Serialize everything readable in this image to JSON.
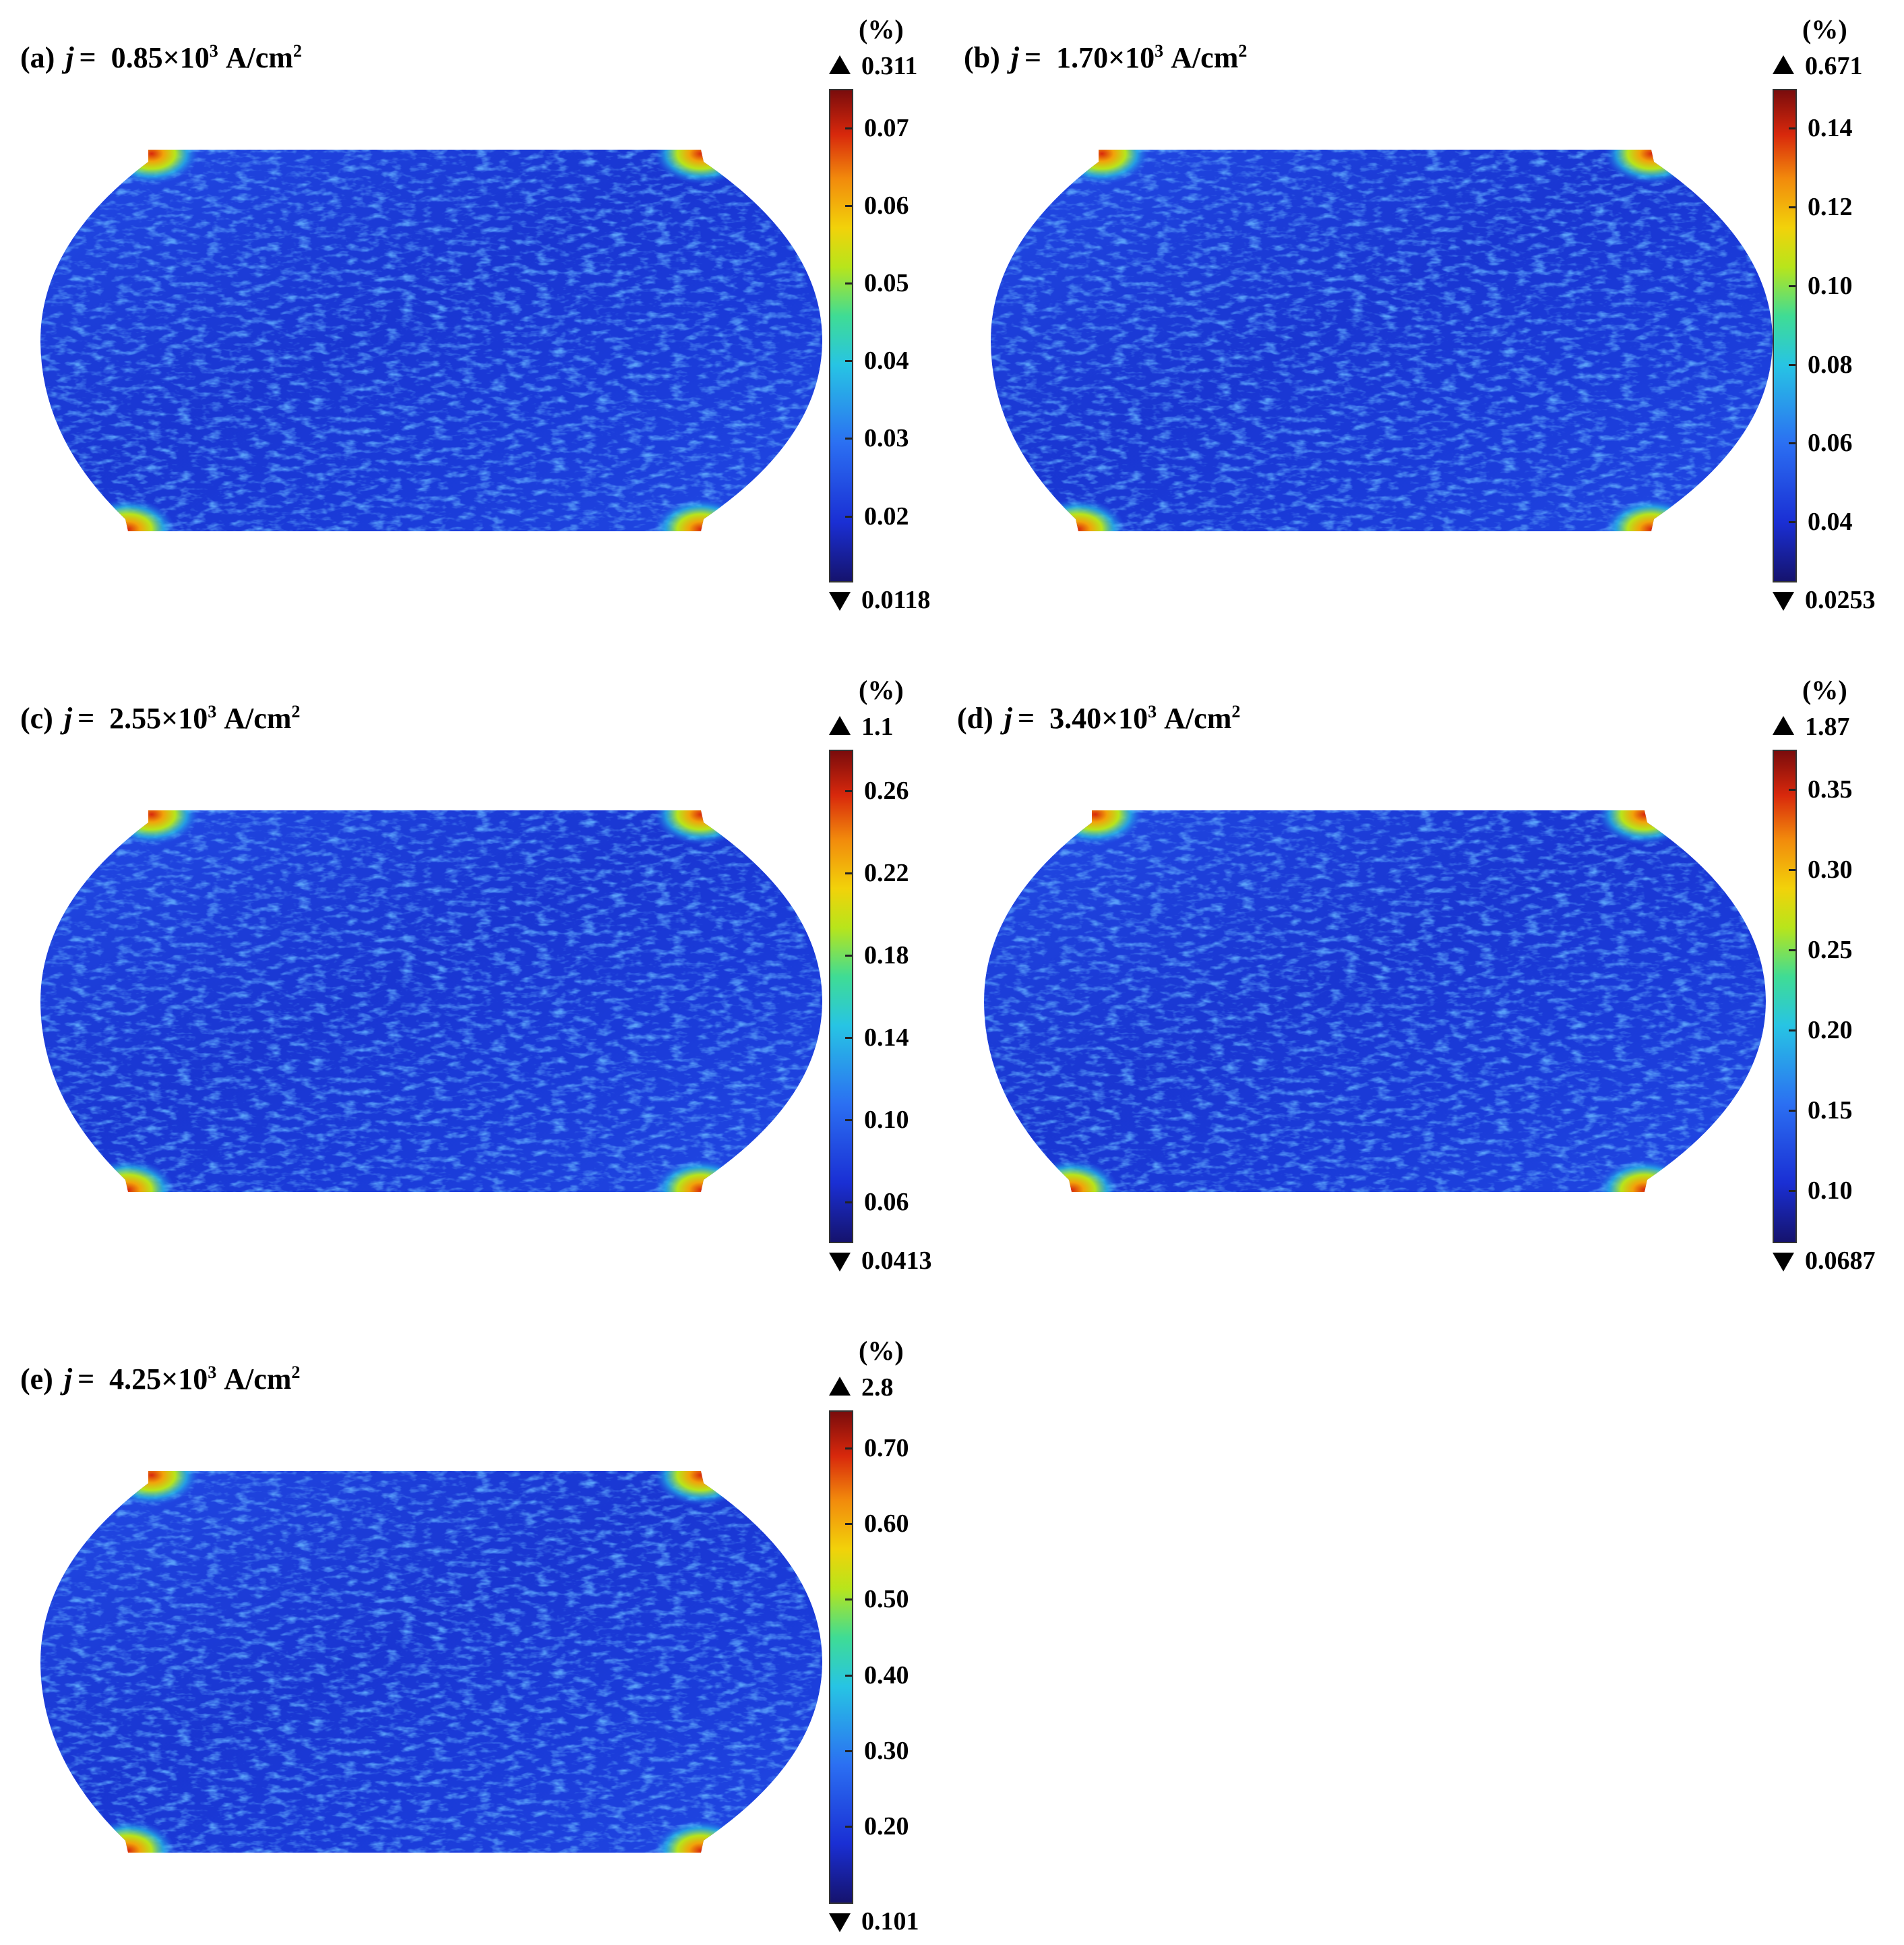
{
  "figure": {
    "unit_label": "(%)",
    "field_colormap": [
      "#15136e",
      "#1a2fd4",
      "#2b6ff2",
      "#27c4e4",
      "#3fdc95",
      "#b8e51b",
      "#f2d20a",
      "#f28a0c",
      "#d8280c",
      "#7a0c0c"
    ],
    "background_color": "#1b3fe0"
  },
  "chart_data": [
    {
      "type": "heatmap",
      "label": "(a)",
      "symbol": "j",
      "equals": "=",
      "current_density": "0.85×10",
      "exponent": "3",
      "unit_base": "A/cm",
      "unit_exp": "2",
      "colorbar": {
        "unit": "(%)",
        "max_label": "0.311",
        "min_label": "0.0118",
        "ticks": [
          "0.07",
          "0.06",
          "0.05",
          "0.04",
          "0.03",
          "0.02"
        ],
        "tick_values": [
          0.07,
          0.06,
          0.05,
          0.04,
          0.03,
          0.02
        ],
        "range": [
          0.0118,
          0.075
        ]
      }
    },
    {
      "type": "heatmap",
      "label": "(b)",
      "symbol": "j",
      "equals": "=",
      "current_density": "1.70×10",
      "exponent": "3",
      "unit_base": "A/cm",
      "unit_exp": "2",
      "colorbar": {
        "unit": "(%)",
        "max_label": "0.671",
        "min_label": "0.0253",
        "ticks": [
          "0.14",
          "0.12",
          "0.10",
          "0.08",
          "0.06",
          "0.04"
        ],
        "tick_values": [
          0.14,
          0.12,
          0.1,
          0.08,
          0.06,
          0.04
        ],
        "range": [
          0.0253,
          0.15
        ]
      }
    },
    {
      "type": "heatmap",
      "label": "(c)",
      "symbol": "j",
      "equals": "=",
      "current_density": "2.55×10",
      "exponent": "3",
      "unit_base": "A/cm",
      "unit_exp": "2",
      "colorbar": {
        "unit": "(%)",
        "max_label": "1.1",
        "min_label": "0.0413",
        "ticks": [
          "0.26",
          "0.22",
          "0.18",
          "0.14",
          "0.10",
          "0.06"
        ],
        "tick_values": [
          0.26,
          0.22,
          0.18,
          0.14,
          0.1,
          0.06
        ],
        "range": [
          0.0413,
          0.28
        ]
      }
    },
    {
      "type": "heatmap",
      "label": "(d)",
      "symbol": "j",
      "equals": "=",
      "current_density": "3.40×10",
      "exponent": "3",
      "unit_base": "A/cm",
      "unit_exp": "2",
      "colorbar": {
        "unit": "(%)",
        "max_label": "1.87",
        "min_label": "0.0687",
        "ticks": [
          "0.35",
          "0.30",
          "0.25",
          "0.20",
          "0.15",
          "0.10"
        ],
        "tick_values": [
          0.35,
          0.3,
          0.25,
          0.2,
          0.15,
          0.1
        ],
        "range": [
          0.0687,
          0.375
        ]
      }
    },
    {
      "type": "heatmap",
      "label": "(e)",
      "symbol": "j",
      "equals": "=",
      "current_density": "4.25×10",
      "exponent": "3",
      "unit_base": "A/cm",
      "unit_exp": "2",
      "colorbar": {
        "unit": "(%)",
        "max_label": "2.8",
        "min_label": "0.101",
        "ticks": [
          "0.70",
          "0.60",
          "0.50",
          "0.40",
          "0.30",
          "0.20"
        ],
        "tick_values": [
          0.7,
          0.6,
          0.5,
          0.4,
          0.3,
          0.2
        ],
        "range": [
          0.101,
          0.75
        ]
      }
    }
  ]
}
